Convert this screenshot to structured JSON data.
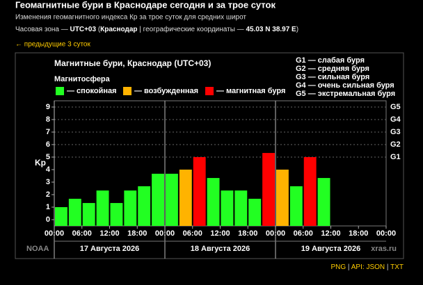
{
  "header": {
    "title": "Геомагнитные бури в Краснодаре сегодня и за трое суток",
    "subtitle": "Изменения геомагнитного индекса Кр за трое суток для средних широт",
    "timezone_line": [
      {
        "text": "Часовая зона — "
      },
      {
        "text": "UTC+03",
        "bold": true
      },
      {
        "text": " ("
      },
      {
        "text": "Краснодар",
        "bold": true
      },
      {
        "text": " | географические координаты — "
      },
      {
        "text": "45.03 N 38.97 E",
        "bold": true
      },
      {
        "text": ")"
      }
    ],
    "prev_link": "← предыдущие 3 суток"
  },
  "chart_data": {
    "type": "bar",
    "title": "Магнитные бури, Краснодар (UTC+03)",
    "legend_title": "Магнитосфера",
    "legend": [
      {
        "name": "— спокойная",
        "color": "#22ff22"
      },
      {
        "name": "— возбужденная",
        "color": "#ffb300"
      },
      {
        "name": "— магнитная буря",
        "color": "#ff0000"
      }
    ],
    "storm_legend": [
      "G1 — слабая буря",
      "G2 — средняя буря",
      "G3 — сильная буря",
      "G4 — очень сильная буря",
      "G5 — экстремальная буря"
    ],
    "y_label": "Kp",
    "x": [
      0,
      3,
      6,
      9,
      12,
      15,
      18,
      21,
      24,
      27,
      30,
      33,
      36,
      39,
      42,
      45,
      48,
      51,
      54,
      57,
      60,
      63,
      66,
      69
    ],
    "values": [
      1,
      1.67,
      1.33,
      2.33,
      1.33,
      2.33,
      2.67,
      3.67,
      3.67,
      4,
      5,
      3.33,
      2.33,
      2.33,
      1.67,
      5.33,
      4,
      2.67,
      5,
      3.33,
      null,
      null,
      null,
      null
    ],
    "colors": [
      "#22ff22",
      "#22ff22",
      "#22ff22",
      "#22ff22",
      "#22ff22",
      "#22ff22",
      "#22ff22",
      "#22ff22",
      "#22ff22",
      "#ffb300",
      "#ff0000",
      "#22ff22",
      "#22ff22",
      "#22ff22",
      "#22ff22",
      "#ff0000",
      "#ffb300",
      "#22ff22",
      "#ff0000",
      "#22ff22",
      null,
      null,
      null,
      null
    ],
    "xlim": [
      0,
      72
    ],
    "xticks": [
      {
        "value": 0,
        "label": "00:00"
      },
      {
        "value": 6,
        "label": "06:00"
      },
      {
        "value": 12,
        "label": "12:00"
      },
      {
        "value": 18,
        "label": "18:00"
      },
      {
        "value": 24,
        "label": "00:00"
      },
      {
        "value": 30,
        "label": "06:00"
      },
      {
        "value": 36,
        "label": "12:00"
      },
      {
        "value": 42,
        "label": "18:00"
      },
      {
        "value": 48,
        "label": "00:00"
      },
      {
        "value": 54,
        "label": "06:00"
      },
      {
        "value": 60,
        "label": "12:00"
      },
      {
        "value": 66,
        "label": "18:00"
      },
      {
        "value": 72,
        "label": "00:00"
      }
    ],
    "ylim": [
      -0.5,
      9.5
    ],
    "yticks": [
      0,
      1,
      2,
      3,
      4,
      5,
      6,
      7,
      8,
      9
    ],
    "y2lim": [
      -0.5,
      9.5
    ],
    "y2ticks": [
      {
        "value": 5,
        "label": "G1"
      },
      {
        "value": 6,
        "label": "G2"
      },
      {
        "value": 7,
        "label": "G3"
      },
      {
        "value": 8,
        "label": "G4"
      },
      {
        "value": 9,
        "label": "G5"
      }
    ],
    "day_starts": [
      0,
      24,
      48
    ],
    "day_labels": [
      "17 Августа 2026",
      "18 Августа 2026",
      "19 Августа 2026"
    ],
    "source_left": "NOAA",
    "source_right": "xras.ru"
  },
  "footer": {
    "png": "PNG",
    "api": "API:",
    "json": "JSON",
    "txt": "TXT"
  }
}
